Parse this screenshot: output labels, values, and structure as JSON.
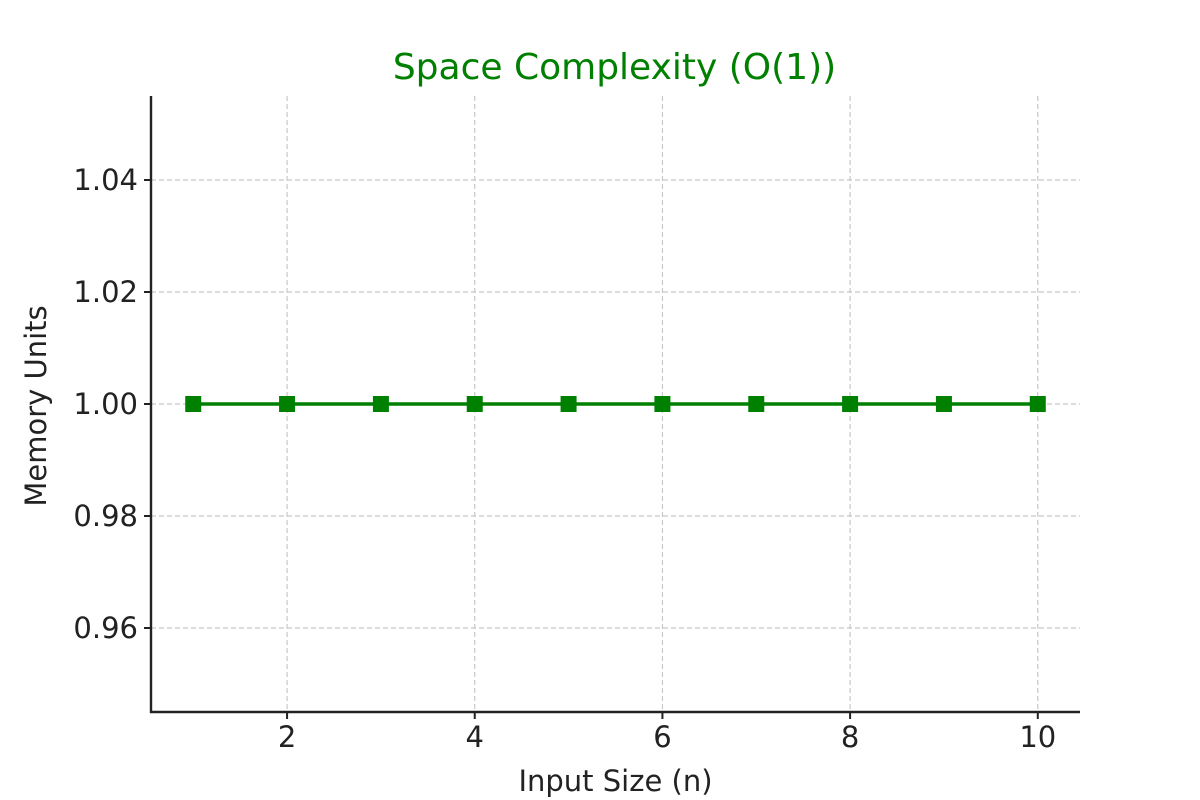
{
  "chart_data": {
    "type": "line",
    "title": "Space Complexity (O(1))",
    "xlabel": "Input Size (n)",
    "ylabel": "Memory Units",
    "x": [
      1,
      2,
      3,
      4,
      5,
      6,
      7,
      8,
      9,
      10
    ],
    "series": [
      {
        "values": [
          1,
          1,
          1,
          1,
          1,
          1,
          1,
          1,
          1,
          1
        ],
        "color": "#008000",
        "marker": "square"
      }
    ],
    "xlim": [
      0.55,
      10.45
    ],
    "ylim": [
      0.945,
      1.055
    ],
    "x_ticks": [
      2,
      4,
      6,
      8,
      10
    ],
    "x_tick_labels": [
      "2",
      "4",
      "6",
      "8",
      "10"
    ],
    "y_ticks": [
      0.96,
      0.98,
      1.0,
      1.02,
      1.04
    ],
    "y_tick_labels": [
      "0.96",
      "0.98",
      "1.00",
      "1.02",
      "1.04"
    ],
    "grid": true,
    "title_color": "#008000"
  }
}
